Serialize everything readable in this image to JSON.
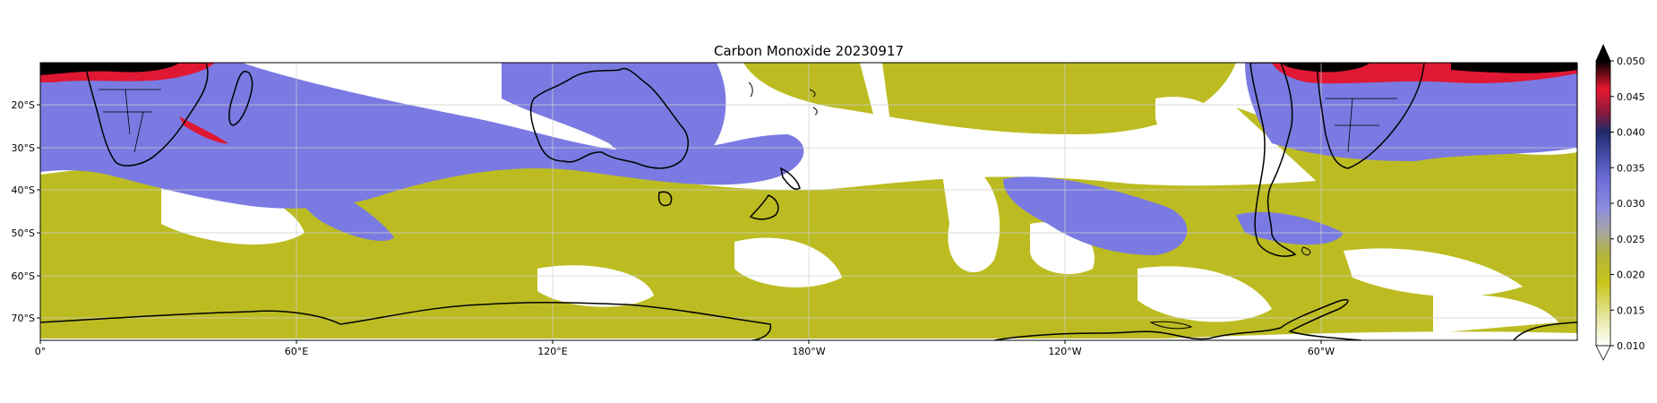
{
  "title": "Carbon Monoxide 20230917",
  "map": {
    "lon_ticks": [
      "0°",
      "60°E",
      "120°E",
      "180°W",
      "120°W",
      "60°W"
    ],
    "lat_ticks": [
      "20°S",
      "30°S",
      "40°S",
      "50°S",
      "60°S",
      "70°S"
    ],
    "lon_range": [
      0,
      360
    ],
    "lat_range": [
      -10,
      -75
    ],
    "grid": true
  },
  "colorbar": {
    "ticks": [
      "0.050",
      "0.045",
      "0.040",
      "0.035",
      "0.030",
      "0.025",
      "0.020",
      "0.015",
      "0.010"
    ],
    "range": [
      0.01,
      0.05
    ],
    "extend": "both",
    "stops": [
      "#ffffff",
      "#e4e488",
      "#c8c41a",
      "#b8b630",
      "#a8a888",
      "#9a9ad8",
      "#7c7ce8",
      "#4a4aa8",
      "#1e2a6a",
      "#a01830",
      "#e81830",
      "#000000"
    ]
  },
  "colors": {
    "low": "#bcbc22",
    "mid": "#7a7ae2",
    "high": "#e01833",
    "extreme": "#000000",
    "coast": "#000000"
  }
}
